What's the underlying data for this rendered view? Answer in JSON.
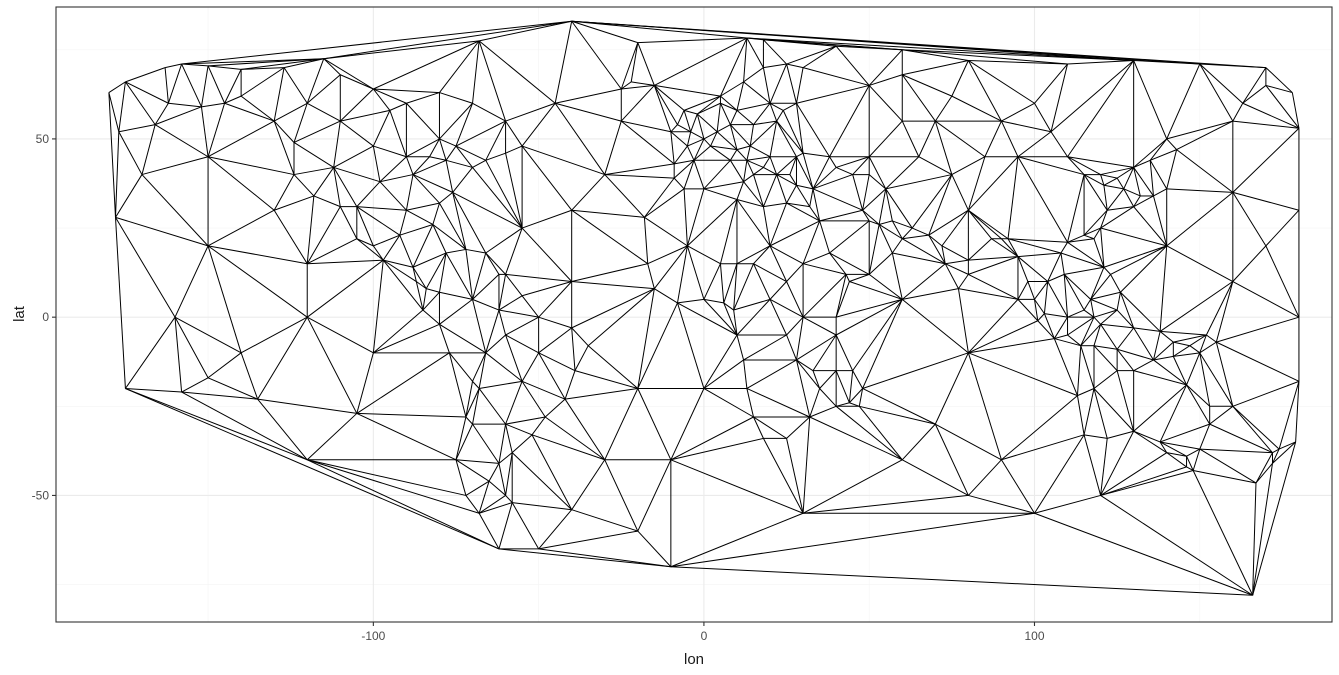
{
  "chart_data": {
    "type": "mesh",
    "xlabel": "lon",
    "ylabel": "lat",
    "xlim": [
      -196,
      190
    ],
    "ylim": [
      -85.5,
      87
    ],
    "x_ticks": [
      -100,
      0,
      100
    ],
    "x_tick_labels": [
      "-100",
      "0",
      "100"
    ],
    "y_ticks": [
      -50,
      0,
      50
    ],
    "y_tick_labels": [
      "-50",
      "0",
      "50"
    ],
    "grid": true,
    "edge_color": "#000000",
    "mesh_points": [
      [
        -180,
        63
      ],
      [
        -175,
        66
      ],
      [
        -163,
        70
      ],
      [
        -158,
        71
      ],
      [
        -150,
        70.5
      ],
      [
        -140,
        69.5
      ],
      [
        -127,
        70
      ],
      [
        -115,
        72.5
      ],
      [
        -68,
        77.5
      ],
      [
        -20,
        77
      ],
      [
        13,
        78.3
      ],
      [
        18,
        77.8
      ],
      [
        40,
        76
      ],
      [
        60,
        75
      ],
      [
        80,
        72
      ],
      [
        110,
        71
      ],
      [
        130,
        72
      ],
      [
        150,
        71
      ],
      [
        170,
        70
      ],
      [
        178,
        63
      ],
      [
        180,
        53
      ],
      [
        180,
        30
      ],
      [
        180,
        0
      ],
      [
        180,
        -18
      ],
      [
        179,
        -35
      ],
      [
        172,
        -38
      ],
      [
        167,
        -46.5
      ],
      [
        160,
        -25
      ],
      [
        166,
        -78
      ],
      [
        -10,
        -70
      ],
      [
        -50,
        -65
      ],
      [
        -62,
        -65
      ],
      [
        -68,
        -55
      ],
      [
        -72,
        -50
      ],
      [
        -75,
        -40
      ],
      [
        -72,
        -28
      ],
      [
        -70,
        -18
      ],
      [
        -77,
        -10
      ],
      [
        -80,
        -2
      ],
      [
        -80,
        7
      ],
      [
        -88,
        14
      ],
      [
        -97,
        16
      ],
      [
        -105,
        22
      ],
      [
        -110,
        31
      ],
      [
        -118,
        34
      ],
      [
        -124,
        40
      ],
      [
        -124,
        49
      ],
      [
        -130,
        55
      ],
      [
        -145,
        60
      ],
      [
        -152,
        59
      ],
      [
        -162,
        60
      ],
      [
        -166,
        54
      ],
      [
        -177,
        52
      ],
      [
        -178,
        28
      ],
      [
        -175,
        -20
      ],
      [
        -158,
        -21
      ],
      [
        -150,
        -17
      ],
      [
        -140,
        -10
      ],
      [
        -120,
        0
      ],
      [
        -135,
        -23
      ],
      [
        -105,
        -27
      ],
      [
        -85,
        2
      ],
      [
        -92,
        23
      ],
      [
        -82,
        26
      ],
      [
        -80,
        32
      ],
      [
        -76,
        35
      ],
      [
        -70,
        42
      ],
      [
        -66,
        44
      ],
      [
        -60,
        46
      ],
      [
        -55,
        48
      ],
      [
        -60,
        55
      ],
      [
        -70,
        60
      ],
      [
        -80,
        63
      ],
      [
        -90,
        60
      ],
      [
        -95,
        58
      ],
      [
        -100,
        64
      ],
      [
        -110,
        68
      ],
      [
        -90,
        45
      ],
      [
        -83,
        45
      ],
      [
        -78,
        44
      ],
      [
        -88,
        40
      ],
      [
        -98,
        38
      ],
      [
        -100,
        48
      ],
      [
        -112,
        42
      ],
      [
        -105,
        31
      ],
      [
        -87,
        10
      ],
      [
        -84,
        8
      ],
      [
        -78,
        18
      ],
      [
        -72,
        19
      ],
      [
        -66,
        18
      ],
      [
        -62,
        12
      ],
      [
        -55,
        6
      ],
      [
        -50,
        0
      ],
      [
        -40,
        -3
      ],
      [
        -35,
        -8
      ],
      [
        -39,
        -15
      ],
      [
        -42,
        -23
      ],
      [
        -48,
        -28
      ],
      [
        -52,
        -33
      ],
      [
        -58,
        -38
      ],
      [
        -62,
        -41
      ],
      [
        -65,
        -46
      ],
      [
        -60,
        -50
      ],
      [
        -58,
        -52
      ],
      [
        -40,
        -54
      ],
      [
        -60,
        12
      ],
      [
        -68,
        -20
      ],
      [
        -60,
        -30
      ],
      [
        -70,
        -30
      ],
      [
        -66,
        -10
      ],
      [
        -55,
        -18
      ],
      [
        -50,
        -10
      ],
      [
        -62,
        2
      ],
      [
        -70,
        5
      ],
      [
        -60,
        -5
      ],
      [
        -45,
        60
      ],
      [
        -25,
        64
      ],
      [
        -22,
        66
      ],
      [
        -15,
        65
      ],
      [
        -40,
        83
      ],
      [
        -18,
        28
      ],
      [
        -17,
        15
      ],
      [
        -15,
        8
      ],
      [
        -8,
        4
      ],
      [
        0,
        5
      ],
      [
        6,
        4
      ],
      [
        9,
        2
      ],
      [
        10,
        -5
      ],
      [
        12,
        -12
      ],
      [
        13,
        -20
      ],
      [
        15,
        -28
      ],
      [
        18,
        -34
      ],
      [
        25,
        -34
      ],
      [
        32,
        -28
      ],
      [
        35,
        -20
      ],
      [
        40,
        -15
      ],
      [
        40,
        -5
      ],
      [
        40,
        0
      ],
      [
        44,
        10
      ],
      [
        50,
        12
      ],
      [
        43,
        12
      ],
      [
        38,
        18
      ],
      [
        35,
        27
      ],
      [
        32,
        31
      ],
      [
        25,
        32
      ],
      [
        18,
        31
      ],
      [
        10,
        33
      ],
      [
        0,
        36
      ],
      [
        -6,
        36
      ],
      [
        -9,
        39
      ],
      [
        -9,
        43
      ],
      [
        -3,
        44
      ],
      [
        -5,
        48
      ],
      [
        0,
        50
      ],
      [
        4,
        52
      ],
      [
        8,
        54
      ],
      [
        10,
        58
      ],
      [
        5,
        60
      ],
      [
        5,
        62
      ],
      [
        12,
        66
      ],
      [
        18,
        70
      ],
      [
        25,
        71
      ],
      [
        30,
        70
      ],
      [
        20,
        60
      ],
      [
        24,
        58
      ],
      [
        28,
        60
      ],
      [
        22,
        55
      ],
      [
        15,
        54
      ],
      [
        20,
        45
      ],
      [
        28,
        45
      ],
      [
        30,
        46
      ],
      [
        38,
        45
      ],
      [
        40,
        42
      ],
      [
        33,
        36
      ],
      [
        28,
        37
      ],
      [
        26,
        40
      ],
      [
        22,
        40
      ],
      [
        18,
        42
      ],
      [
        13,
        44
      ],
      [
        8,
        44
      ],
      [
        12,
        38
      ],
      [
        15,
        40
      ],
      [
        10,
        47
      ],
      [
        14,
        48
      ],
      [
        2,
        48
      ],
      [
        -4,
        52
      ],
      [
        -8,
        54
      ],
      [
        -6,
        58
      ],
      [
        -2,
        57
      ],
      [
        -10,
        52
      ],
      [
        45,
        40
      ],
      [
        50,
        45
      ],
      [
        50,
        40
      ],
      [
        55,
        36
      ],
      [
        57,
        27
      ],
      [
        60,
        22
      ],
      [
        57,
        18
      ],
      [
        50,
        27
      ],
      [
        48,
        30
      ],
      [
        53,
        26
      ],
      [
        63,
        25
      ],
      [
        68,
        23
      ],
      [
        72,
        20
      ],
      [
        73,
        15
      ],
      [
        77,
        8
      ],
      [
        80,
        12
      ],
      [
        80,
        16
      ],
      [
        87,
        22
      ],
      [
        90,
        22
      ],
      [
        92,
        22
      ],
      [
        95,
        17
      ],
      [
        98,
        10
      ],
      [
        100,
        5
      ],
      [
        103,
        1
      ],
      [
        104,
        10
      ],
      [
        109,
        12
      ],
      [
        108,
        18
      ],
      [
        110,
        21
      ],
      [
        115,
        23
      ],
      [
        120,
        25
      ],
      [
        122,
        30
      ],
      [
        121,
        37
      ],
      [
        125,
        39
      ],
      [
        130,
        42
      ],
      [
        135,
        44
      ],
      [
        140,
        50
      ],
      [
        143,
        47
      ],
      [
        140,
        36
      ],
      [
        136,
        34
      ],
      [
        132,
        34
      ],
      [
        130,
        31
      ],
      [
        127,
        36
      ],
      [
        120,
        40
      ],
      [
        118,
        22
      ],
      [
        123,
        12
      ],
      [
        126,
        7
      ],
      [
        121,
        14
      ],
      [
        95,
        5
      ],
      [
        101,
        -1
      ],
      [
        106,
        -6
      ],
      [
        114,
        -8
      ],
      [
        118,
        -8
      ],
      [
        125,
        -9
      ],
      [
        130,
        -3
      ],
      [
        138,
        -4
      ],
      [
        142,
        -7
      ],
      [
        147,
        -8
      ],
      [
        150,
        -10
      ],
      [
        152,
        -5
      ],
      [
        155,
        -7
      ],
      [
        113,
        -22
      ],
      [
        115,
        -33
      ],
      [
        122,
        -34
      ],
      [
        130,
        -32
      ],
      [
        138,
        -35
      ],
      [
        140,
        -38
      ],
      [
        146,
        -39
      ],
      [
        150,
        -37
      ],
      [
        153,
        -30
      ],
      [
        153,
        -25
      ],
      [
        146,
        -19
      ],
      [
        142,
        -11
      ],
      [
        136,
        -12
      ],
      [
        130,
        -15
      ],
      [
        125,
        -15
      ],
      [
        118,
        -20
      ],
      [
        146,
        -42
      ],
      [
        148,
        -43
      ],
      [
        172,
        -41
      ],
      [
        174,
        -37
      ],
      [
        110,
        0
      ],
      [
        115,
        2
      ],
      [
        117,
        5
      ],
      [
        110,
        -5
      ],
      [
        120,
        -2
      ],
      [
        125,
        2
      ],
      [
        118,
        0
      ],
      [
        60,
        55
      ],
      [
        70,
        55
      ],
      [
        75,
        62
      ],
      [
        90,
        55
      ],
      [
        100,
        60
      ],
      [
        105,
        52
      ],
      [
        95,
        45
      ],
      [
        85,
        45
      ],
      [
        75,
        40
      ],
      [
        80,
        30
      ],
      [
        65,
        45
      ],
      [
        110,
        45
      ],
      [
        115,
        40
      ],
      [
        160,
        55
      ],
      [
        163,
        60
      ],
      [
        170,
        65
      ],
      [
        50,
        65
      ],
      [
        60,
        68
      ],
      [
        45,
        -15
      ],
      [
        48,
        -20
      ],
      [
        47,
        -25
      ],
      [
        44,
        -24
      ],
      [
        40,
        -25
      ],
      [
        33,
        -15
      ],
      [
        25,
        -5
      ],
      [
        20,
        5
      ],
      [
        25,
        10
      ],
      [
        30,
        15
      ],
      [
        15,
        15
      ],
      [
        5,
        15
      ],
      [
        -5,
        20
      ],
      [
        20,
        20
      ],
      [
        30,
        0
      ],
      [
        28,
        -12
      ],
      [
        10,
        15
      ],
      [
        -80,
        50
      ],
      [
        -75,
        48
      ],
      [
        -130,
        30
      ],
      [
        -90,
        30
      ],
      [
        -100,
        20
      ],
      [
        -110,
        55
      ],
      [
        -120,
        60
      ],
      [
        -140,
        62
      ],
      [
        -55,
        25
      ],
      [
        -30,
        40
      ],
      [
        -40,
        10
      ],
      [
        -20,
        -20
      ],
      [
        -10,
        -40
      ],
      [
        -100,
        -10
      ],
      [
        -150,
        20
      ],
      [
        -30,
        -40
      ],
      [
        60,
        -40
      ],
      [
        80,
        -10
      ],
      [
        70,
        -30
      ],
      [
        90,
        -40
      ],
      [
        60,
        5
      ],
      [
        80,
        -50
      ],
      [
        140,
        20
      ],
      [
        160,
        35
      ],
      [
        160,
        10
      ],
      [
        120,
        -50
      ],
      [
        -170,
        40
      ],
      [
        -160,
        0
      ],
      [
        170,
        20
      ],
      [
        -20,
        -60
      ],
      [
        100,
        -55
      ],
      [
        30,
        -55
      ],
      [
        0,
        -20
      ],
      [
        -25,
        55
      ],
      [
        -40,
        30
      ],
      [
        -120,
        -40
      ],
      [
        -150,
        45
      ],
      [
        -120,
        15
      ]
    ]
  }
}
